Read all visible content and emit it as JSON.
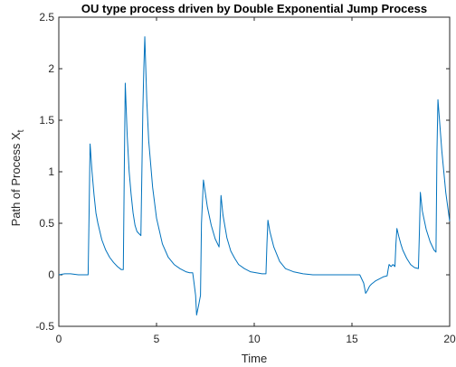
{
  "chart_data": {
    "type": "line",
    "title": "OU type process driven by Double Exponential Jump Process",
    "xlabel": "Time",
    "ylabel_main": "Path of Process X",
    "ylabel_sub": "t",
    "xlim": [
      0,
      20
    ],
    "ylim": [
      -0.5,
      2.5
    ],
    "xticks": [
      0,
      5,
      10,
      15,
      20
    ],
    "yticks": [
      -0.5,
      0,
      0.5,
      1,
      1.5,
      2,
      2.5
    ],
    "ytick_labels": [
      "-0.5",
      "0",
      "0.5",
      "1",
      "1.5",
      "2",
      "2.5"
    ],
    "grid": false,
    "line_color": "#0072BD",
    "series": [
      {
        "x": [
          0,
          0.3,
          0.6,
          1.0,
          1.3,
          1.5,
          1.55,
          1.6,
          1.7,
          1.8,
          1.9,
          2.0,
          2.2,
          2.4,
          2.6,
          2.8,
          3.0,
          3.2,
          3.3,
          3.35,
          3.4,
          3.5,
          3.6,
          3.7,
          3.8,
          3.9,
          4.0,
          4.1,
          4.2,
          4.3,
          4.35,
          4.4,
          4.5,
          4.6,
          4.8,
          5.0,
          5.3,
          5.6,
          5.9,
          6.2,
          6.5,
          6.7,
          6.85,
          6.9,
          7.0,
          7.05,
          7.15,
          7.25,
          7.3,
          7.4,
          7.6,
          7.8,
          8.0,
          8.2,
          8.25,
          8.3,
          8.4,
          8.6,
          8.8,
          9.0,
          9.2,
          9.5,
          9.8,
          10.1,
          10.4,
          10.6,
          10.65,
          10.7,
          10.8,
          11.0,
          11.3,
          11.6,
          12.0,
          12.5,
          13.0,
          13.5,
          14.0,
          14.5,
          15.0,
          15.4,
          15.6,
          15.7,
          15.8,
          15.9,
          16.0,
          16.2,
          16.4,
          16.6,
          16.8,
          16.85,
          16.9,
          17.0,
          17.1,
          17.2,
          17.25,
          17.3,
          17.4,
          17.5,
          17.6,
          17.8,
          18.0,
          18.2,
          18.4,
          18.45,
          18.5,
          18.6,
          18.8,
          19.0,
          19.2,
          19.3,
          19.35,
          19.4,
          19.5,
          19.6,
          19.8,
          20.0
        ],
        "y": [
          0.0,
          0.01,
          0.01,
          0.0,
          0.0,
          0.0,
          0.6,
          1.27,
          1.0,
          0.78,
          0.6,
          0.5,
          0.34,
          0.24,
          0.17,
          0.12,
          0.08,
          0.05,
          0.05,
          1.0,
          1.86,
          1.35,
          1.0,
          0.78,
          0.6,
          0.48,
          0.42,
          0.4,
          0.38,
          1.6,
          2.0,
          2.31,
          1.7,
          1.3,
          0.85,
          0.55,
          0.3,
          0.17,
          0.1,
          0.06,
          0.03,
          0.02,
          0.02,
          -0.05,
          -0.2,
          -0.39,
          -0.3,
          -0.2,
          0.5,
          0.92,
          0.66,
          0.48,
          0.35,
          0.27,
          0.5,
          0.77,
          0.58,
          0.36,
          0.23,
          0.16,
          0.1,
          0.06,
          0.03,
          0.02,
          0.01,
          0.01,
          0.3,
          0.53,
          0.42,
          0.27,
          0.13,
          0.06,
          0.03,
          0.01,
          0.0,
          0.0,
          0.0,
          0.0,
          0.0,
          0.0,
          -0.08,
          -0.18,
          -0.15,
          -0.11,
          -0.09,
          -0.06,
          -0.04,
          -0.02,
          -0.01,
          0.05,
          0.1,
          0.08,
          0.1,
          0.08,
          0.3,
          0.45,
          0.37,
          0.3,
          0.24,
          0.16,
          0.1,
          0.07,
          0.06,
          0.4,
          0.8,
          0.62,
          0.44,
          0.32,
          0.24,
          0.22,
          1.2,
          1.7,
          1.45,
          1.2,
          0.8,
          0.52
        ]
      }
    ]
  }
}
